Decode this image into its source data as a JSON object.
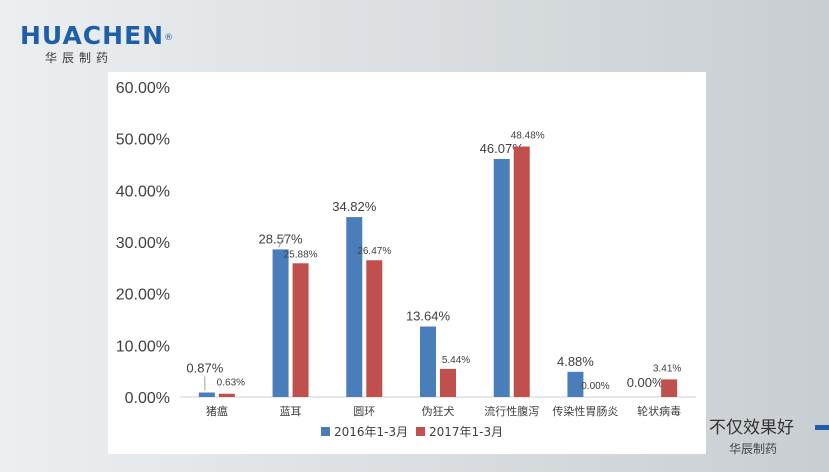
{
  "logo": {
    "brand": "HUACHEN",
    "registered": "®",
    "sub": "华辰制药"
  },
  "slogan": {
    "main": "不仅效果好",
    "sub": "华辰制药"
  },
  "colors": {
    "series1": "#4a7ebb",
    "series2": "#c0504d",
    "brand": "#1f5fa8"
  },
  "chart_data": {
    "type": "bar",
    "title": "",
    "xlabel": "",
    "ylabel": "",
    "ylim": [
      0,
      60
    ],
    "yticks": [
      "0.00%",
      "10.00%",
      "20.00%",
      "30.00%",
      "40.00%",
      "50.00%",
      "60.00%"
    ],
    "categories": [
      "猪瘟",
      "蓝耳",
      "圆环",
      "伪狂犬",
      "流行性腹泻",
      "传染性胃肠炎",
      "轮状病毒"
    ],
    "series": [
      {
        "name": "2016年1-3月",
        "values": [
          0.87,
          28.57,
          34.82,
          13.64,
          46.07,
          4.88,
          0.0
        ],
        "labels": [
          "0.87%",
          "28.57%",
          "34.82%",
          "13.64%",
          "46.07%",
          "4.88%",
          "0.00%"
        ]
      },
      {
        "name": "2017年1-3月",
        "values": [
          0.63,
          25.88,
          26.47,
          5.44,
          48.48,
          0.0,
          3.41
        ],
        "labels": [
          "0.63%",
          "25.88%",
          "26.47%",
          "5.44%",
          "48.48%",
          "0.00%",
          "3.41%"
        ]
      }
    ],
    "grid": false,
    "legend": "bottom"
  }
}
